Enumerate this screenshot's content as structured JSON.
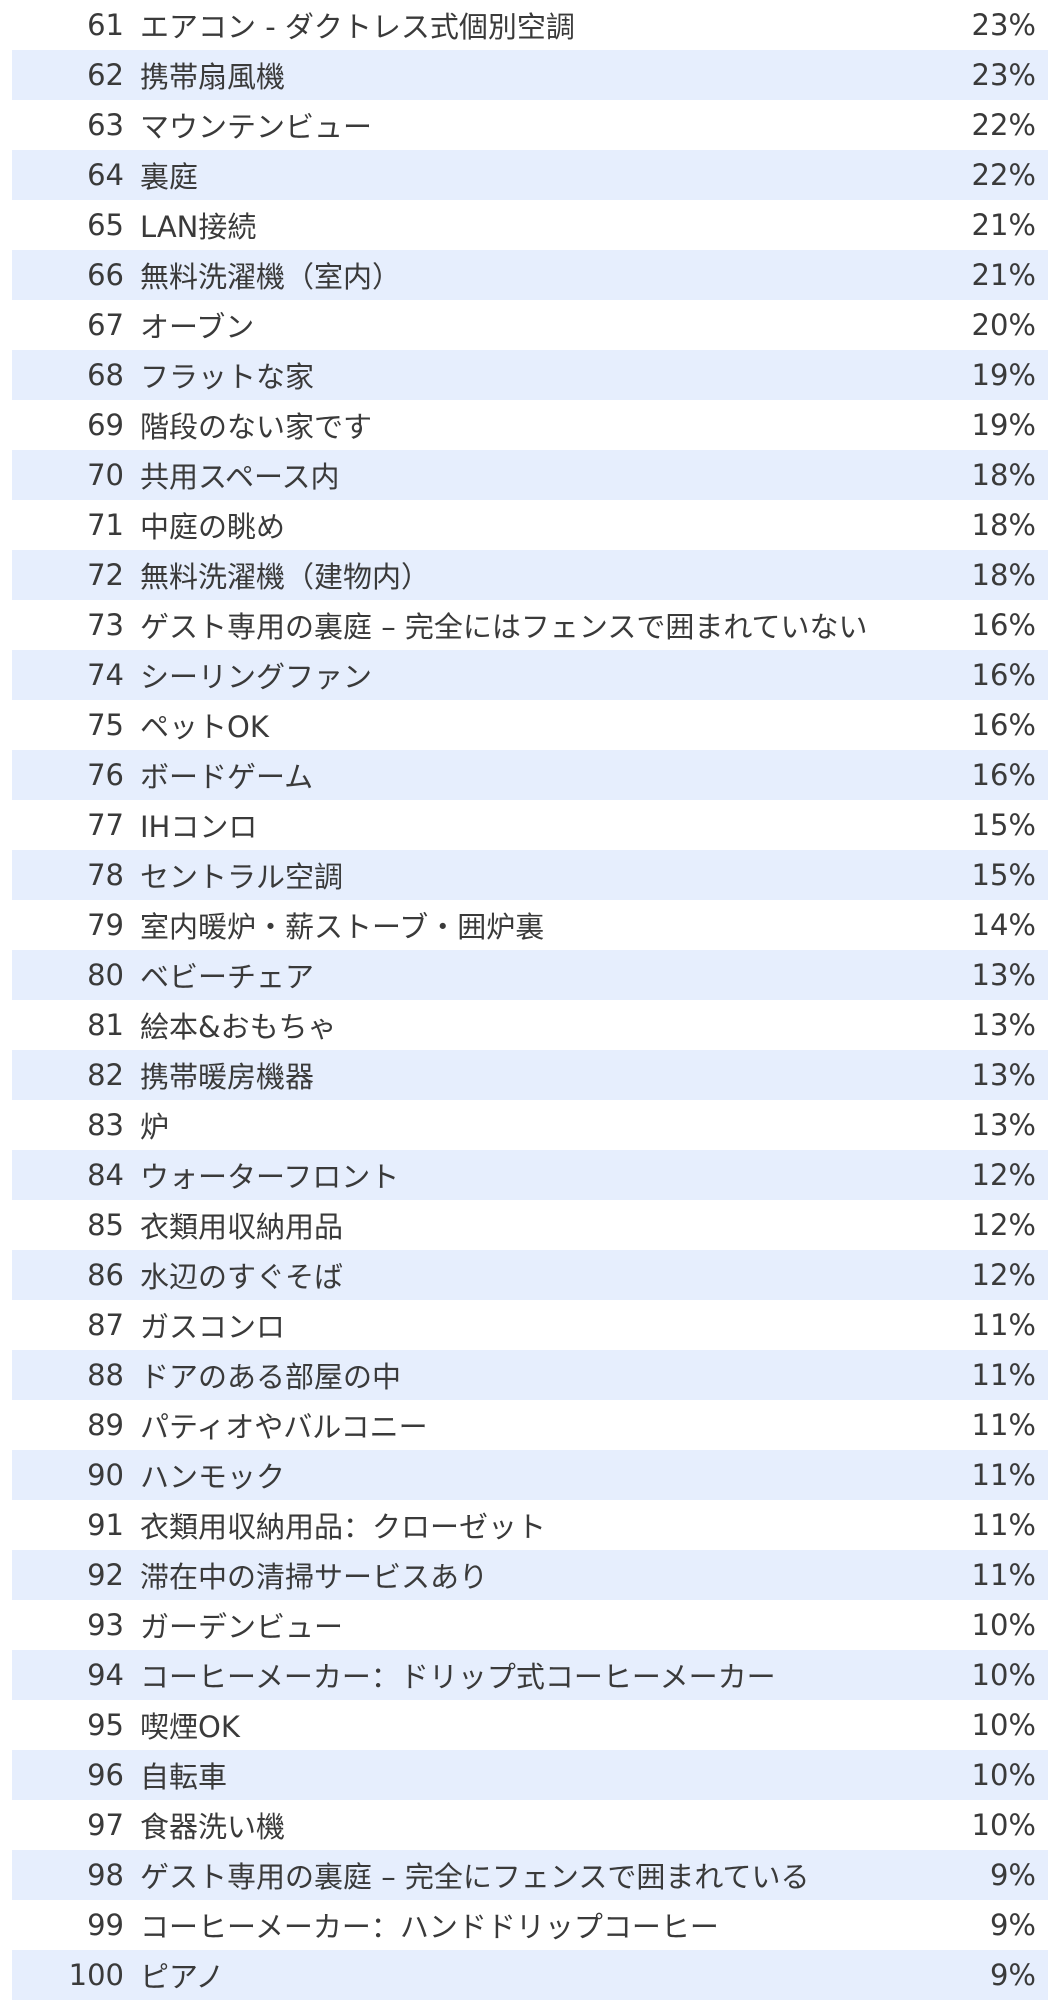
{
  "rows": [
    {
      "rank": "61",
      "name": "エアコン - ダクトレス式個別空調",
      "pct": "23%"
    },
    {
      "rank": "62",
      "name": "携帯扇風機",
      "pct": "23%"
    },
    {
      "rank": "63",
      "name": "マウンテンビュー",
      "pct": "22%"
    },
    {
      "rank": "64",
      "name": "裏庭",
      "pct": "22%"
    },
    {
      "rank": "65",
      "name": "LAN接続",
      "pct": "21%"
    },
    {
      "rank": "66",
      "name": "無料洗濯機（室内）",
      "pct": "21%"
    },
    {
      "rank": "67",
      "name": "オーブン",
      "pct": "20%"
    },
    {
      "rank": "68",
      "name": "フラットな家",
      "pct": "19%"
    },
    {
      "rank": "69",
      "name": "階段のない家です",
      "pct": "19%"
    },
    {
      "rank": "70",
      "name": "共用スペース内",
      "pct": "18%"
    },
    {
      "rank": "71",
      "name": "中庭の眺め",
      "pct": "18%"
    },
    {
      "rank": "72",
      "name": "無料洗濯機（建物内）",
      "pct": "18%"
    },
    {
      "rank": "73",
      "name": "ゲスト専用の裏庭 – 完全にはフェンスで囲まれていない",
      "pct": "16%"
    },
    {
      "rank": "74",
      "name": "シーリングファン",
      "pct": "16%"
    },
    {
      "rank": "75",
      "name": "ペットOK",
      "pct": "16%"
    },
    {
      "rank": "76",
      "name": "ボードゲーム",
      "pct": "16%"
    },
    {
      "rank": "77",
      "name": "IHコンロ",
      "pct": "15%"
    },
    {
      "rank": "78",
      "name": "セントラル空調",
      "pct": "15%"
    },
    {
      "rank": "79",
      "name": "室内暖炉・薪ストーブ・囲炉裏",
      "pct": "14%"
    },
    {
      "rank": "80",
      "name": "ベビーチェア",
      "pct": "13%"
    },
    {
      "rank": "81",
      "name": "絵本&おもちゃ",
      "pct": "13%"
    },
    {
      "rank": "82",
      "name": "携帯暖房機器",
      "pct": "13%"
    },
    {
      "rank": "83",
      "name": "炉",
      "pct": "13%"
    },
    {
      "rank": "84",
      "name": "ウォーターフロント",
      "pct": "12%"
    },
    {
      "rank": "85",
      "name": "衣類用収納用品",
      "pct": "12%"
    },
    {
      "rank": "86",
      "name": "水辺のすぐそば",
      "pct": "12%"
    },
    {
      "rank": "87",
      "name": "ガスコンロ",
      "pct": "11%"
    },
    {
      "rank": "88",
      "name": "ドアのある部屋の中",
      "pct": "11%"
    },
    {
      "rank": "89",
      "name": "パティオやバルコニー",
      "pct": "11%"
    },
    {
      "rank": "90",
      "name": "ハンモック",
      "pct": "11%"
    },
    {
      "rank": "91",
      "name": "衣類用収納用品：クローゼット",
      "pct": "11%"
    },
    {
      "rank": "92",
      "name": "滞在中の清掃サービスあり",
      "pct": "11%"
    },
    {
      "rank": "93",
      "name": "ガーデンビュー",
      "pct": "10%"
    },
    {
      "rank": "94",
      "name": "コーヒーメーカー：ドリップ式コーヒーメーカー",
      "pct": "10%"
    },
    {
      "rank": "95",
      "name": "喫煙OK",
      "pct": "10%"
    },
    {
      "rank": "96",
      "name": "自転車",
      "pct": "10%"
    },
    {
      "rank": "97",
      "name": "食器洗い機",
      "pct": "10%"
    },
    {
      "rank": "98",
      "name": "ゲスト専用の裏庭 – 完全にフェンスで囲まれている",
      "pct": "9%"
    },
    {
      "rank": "99",
      "name": "コーヒーメーカー：ハンドドリップコーヒー",
      "pct": "9%"
    },
    {
      "rank": "100",
      "name": "ピアノ",
      "pct": "9%"
    }
  ],
  "colors": {
    "stripe": "#e6eefd",
    "background": "#ffffff",
    "text": "#3a3a3a"
  }
}
